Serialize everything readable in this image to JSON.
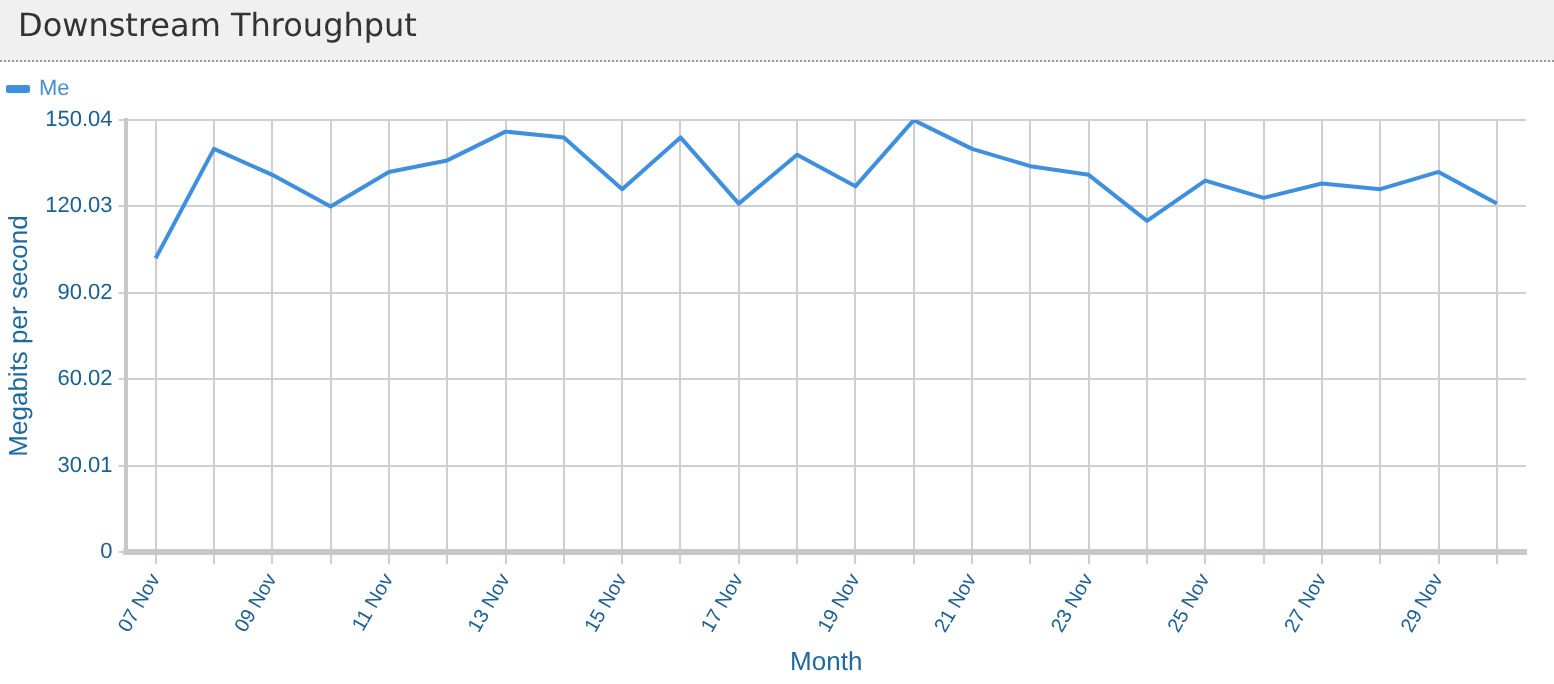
{
  "chart_data": {
    "type": "line",
    "title": "Downstream Throughput",
    "xlabel": "Month",
    "ylabel": "Megabits per second",
    "categories": [
      "07 Nov",
      null,
      "09 Nov",
      null,
      "11 Nov",
      null,
      "13 Nov",
      null,
      "15 Nov",
      null,
      "17 Nov",
      null,
      "19 Nov",
      null,
      "21 Nov",
      null,
      "23 Nov",
      null,
      "25 Nov",
      null,
      "27 Nov",
      null,
      "29 Nov",
      null
    ],
    "series": [
      {
        "name": "Me",
        "color": "#3f8fdf",
        "values": [
          102,
          140,
          131,
          120,
          132,
          136,
          146,
          144,
          126,
          144,
          121,
          138,
          127,
          150,
          140,
          134,
          131,
          115,
          129,
          123,
          128,
          126,
          132,
          121
        ]
      }
    ],
    "ylim": [
      0,
      150.04
    ],
    "yticks": [
      0,
      30.01,
      60.02,
      90.02,
      120.03,
      150.04
    ],
    "grid": true,
    "legend": "top left",
    "marker": "none",
    "line_style": "solid"
  }
}
